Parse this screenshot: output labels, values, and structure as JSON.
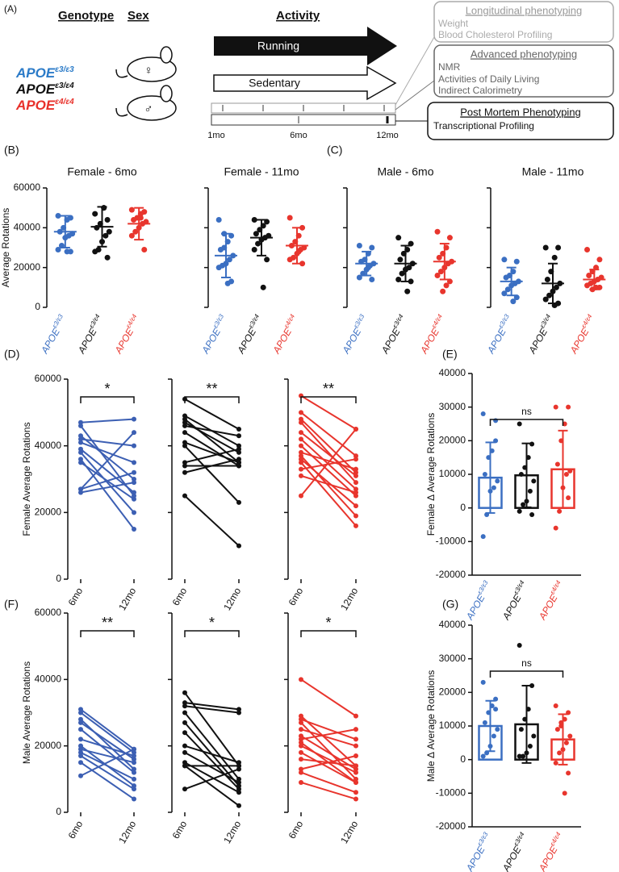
{
  "schematic": {
    "panel": "(A)",
    "headers": [
      "Genotype",
      "Sex",
      "Activity"
    ],
    "genotypes": [
      {
        "label": "APOE",
        "superscript": "ε3/ε3",
        "color": "#2b7bc8"
      },
      {
        "label": "APOE",
        "superscript": "ε3/ε4",
        "color": "#111111"
      },
      {
        "label": "APOE",
        "superscript": "ε4/ε4",
        "color": "#e8302a"
      }
    ],
    "sex_symbols": [
      "♀",
      "♂"
    ],
    "activities": [
      "Running",
      "Sedentary"
    ],
    "timeline": [
      "1mo",
      "6mo",
      "12mo"
    ],
    "phenotyping": [
      {
        "title": "Longitudinal phenotyping",
        "items": [
          "Weight",
          "Blood Cholesterol Profiling"
        ]
      },
      {
        "title": "Advanced phenotyping",
        "items": [
          "NMR",
          "Activities of Daily Living",
          "Indirect Calorimetry"
        ]
      },
      {
        "title": "Post Mortem Phenotyping",
        "items": [
          "Transcriptional Profiling"
        ]
      }
    ]
  },
  "chart_data": [
    {
      "type": "dot",
      "panel": "(B)",
      "title": "Female - 6mo",
      "ylabel": "Average Rotations",
      "categories": [
        {
          "label": "APOE",
          "superscript": "ε3/ε3"
        },
        {
          "label": "APOE",
          "superscript": "ε3/ε4"
        },
        {
          "label": "APOE",
          "superscript": "ε4/ε4"
        }
      ],
      "series": [
        {
          "color": "#3b6fc2",
          "points": [
            46000,
            45000,
            44000,
            40000,
            38000,
            37000,
            36000,
            35000,
            31000,
            29000,
            28000,
            28000
          ],
          "mean": 38000,
          "sd": 8000
        },
        {
          "color": "#111111",
          "points": [
            47000,
            44000,
            50000,
            42000,
            40000,
            38000,
            36000,
            33000,
            29000,
            28000,
            25000,
            50000
          ],
          "mean": 40500,
          "sd": 10000
        },
        {
          "color": "#e8352d",
          "points": [
            49000,
            48000,
            47000,
            45000,
            44000,
            43000,
            42000,
            40000,
            38000,
            36000,
            29000,
            45000
          ],
          "mean": 42000,
          "sd": 8000
        }
      ],
      "ylim": [
        0,
        60000
      ],
      "yticks": [
        0,
        20000,
        40000,
        60000
      ],
      "show_ytick_labels": true
    },
    {
      "type": "dot",
      "title": "Female - 11mo",
      "categories": [
        {
          "label": "APOE",
          "superscript": "ε3/ε3"
        },
        {
          "label": "APOE",
          "superscript": "ε3/ε4"
        },
        {
          "label": "APOE",
          "superscript": "ε4/ε4"
        }
      ],
      "series": [
        {
          "color": "#3b6fc2",
          "points": [
            44000,
            36000,
            33000,
            30000,
            29000,
            26000,
            24000,
            22000,
            21000,
            20000,
            13000,
            12000,
            37000
          ],
          "mean": 26000,
          "sd": 11000
        },
        {
          "color": "#111111",
          "points": [
            44000,
            43000,
            41000,
            39000,
            37000,
            36000,
            35000,
            34000,
            32000,
            29000,
            24000,
            10000
          ],
          "mean": 35000,
          "sd": 9000
        },
        {
          "color": "#e8352d",
          "points": [
            45000,
            40000,
            36000,
            33000,
            31000,
            30000,
            29000,
            27000,
            25000,
            24000,
            22000,
            28000
          ],
          "mean": 31000,
          "sd": 9000
        }
      ],
      "ylim": [
        0,
        60000
      ],
      "yticks": [
        0,
        20000,
        40000,
        60000
      ],
      "show_ytick_labels": false
    },
    {
      "type": "dot",
      "panel": "(C)",
      "title": "Male - 6mo",
      "categories": [
        {
          "label": "APOE",
          "superscript": "ε3/ε3"
        },
        {
          "label": "APOE",
          "superscript": "ε3/ε4"
        },
        {
          "label": "APOE",
          "superscript": "ε4/ε4"
        }
      ],
      "series": [
        {
          "color": "#3b6fc2",
          "points": [
            31000,
            30000,
            27000,
            24000,
            23000,
            22000,
            21000,
            19000,
            17000,
            15000,
            14000,
            20000
          ],
          "mean": 22000,
          "sd": 6000
        },
        {
          "color": "#111111",
          "points": [
            35000,
            32000,
            29000,
            27000,
            24000,
            22000,
            20000,
            19000,
            17000,
            14000,
            13000,
            8000
          ],
          "mean": 22000,
          "sd": 9000
        },
        {
          "color": "#e8352d",
          "points": [
            38000,
            35000,
            30000,
            27000,
            25000,
            23000,
            22000,
            20000,
            18000,
            16000,
            13000,
            11000,
            8000
          ],
          "mean": 23000,
          "sd": 9000
        }
      ],
      "ylim": [
        0,
        60000
      ],
      "yticks": [
        0,
        20000,
        40000,
        60000
      ],
      "show_ytick_labels": false
    },
    {
      "type": "dot",
      "title": "Male - 11mo",
      "categories": [
        {
          "label": "APOE",
          "superscript": "ε3/ε3"
        },
        {
          "label": "APOE",
          "superscript": "ε3/ε4"
        },
        {
          "label": "APOE",
          "superscript": "ε4/ε4"
        }
      ],
      "series": [
        {
          "color": "#3b6fc2",
          "points": [
            24000,
            23000,
            18000,
            16000,
            15000,
            13000,
            12000,
            11000,
            9000,
            7000,
            5000,
            3000
          ],
          "mean": 13000,
          "sd": 7000
        },
        {
          "color": "#111111",
          "points": [
            30000,
            30000,
            25000,
            18000,
            14000,
            12000,
            10000,
            8000,
            6000,
            4000,
            2000,
            1000
          ],
          "mean": 12000,
          "sd": 10000
        },
        {
          "color": "#e8352d",
          "points": [
            29000,
            24000,
            20000,
            18000,
            16000,
            15000,
            14000,
            13000,
            12000,
            11000,
            10000,
            10000,
            9000
          ],
          "mean": 14000,
          "sd": 5000
        }
      ],
      "ylim": [
        0,
        60000
      ],
      "yticks": [
        0,
        20000,
        40000,
        60000
      ],
      "show_ytick_labels": false
    },
    {
      "type": "paired",
      "panel": "(D)",
      "ylabel": "Female Average Rotations",
      "categories": [
        "6mo",
        "12mo"
      ],
      "color": "#3c5fb3",
      "significance": "*",
      "pairs": [
        [
          47000,
          48000
        ],
        [
          46000,
          25000
        ],
        [
          43000,
          30000
        ],
        [
          42000,
          40000
        ],
        [
          41000,
          35000
        ],
        [
          39000,
          26000
        ],
        [
          38000,
          20000
        ],
        [
          36000,
          15000
        ],
        [
          35000,
          24000
        ],
        [
          27000,
          44000
        ],
        [
          27000,
          32000
        ],
        [
          26000,
          29000
        ]
      ],
      "ylim": [
        0,
        60000
      ],
      "yticks": [
        0,
        20000,
        40000,
        60000
      ],
      "show_ytick_labels": true
    },
    {
      "type": "paired",
      "categories": [
        "6mo",
        "12mo"
      ],
      "color": "#111111",
      "significance": "**",
      "pairs": [
        [
          54000,
          45000
        ],
        [
          49000,
          40000
        ],
        [
          48000,
          35000
        ],
        [
          47000,
          38000
        ],
        [
          46000,
          43000
        ],
        [
          44000,
          34000
        ],
        [
          41000,
          35000
        ],
        [
          40000,
          23000
        ],
        [
          35000,
          39000
        ],
        [
          34000,
          34000
        ],
        [
          32000,
          36000
        ],
        [
          25000,
          10000
        ]
      ],
      "ylim": [
        0,
        60000
      ],
      "yticks": [
        0,
        20000,
        40000,
        60000
      ],
      "show_ytick_labels": false
    },
    {
      "type": "paired",
      "categories": [
        "6mo",
        "12mo"
      ],
      "color": "#e8352d",
      "significance": "**",
      "pairs": [
        [
          55000,
          45000
        ],
        [
          50000,
          37000
        ],
        [
          48000,
          32000
        ],
        [
          47000,
          29000
        ],
        [
          44000,
          31000
        ],
        [
          42000,
          27000
        ],
        [
          40000,
          25000
        ],
        [
          38000,
          33000
        ],
        [
          37000,
          19000
        ],
        [
          36000,
          22000
        ],
        [
          35000,
          16000
        ],
        [
          33000,
          36000
        ],
        [
          31000,
          26000
        ],
        [
          25000,
          45000
        ]
      ],
      "ylim": [
        0,
        60000
      ],
      "yticks": [
        0,
        20000,
        40000,
        60000
      ],
      "show_ytick_labels": false
    },
    {
      "type": "bar_dot",
      "panel": "(E)",
      "ylabel": "Female Δ Average Rotations",
      "significance": "ns",
      "categories": [
        {
          "label": "APOE",
          "superscript": "ε3/ε3"
        },
        {
          "label": "APOE",
          "superscript": "ε3/ε4"
        },
        {
          "label": "APOE",
          "superscript": "ε4/ε4"
        }
      ],
      "series": [
        {
          "color": "#3b6fc2",
          "points": [
            28000,
            26000,
            17000,
            15000,
            10000,
            8000,
            6000,
            5000,
            -2000,
            -8500,
            20000
          ],
          "mean": 9000,
          "sd": 10500
        },
        {
          "color": "#111111",
          "points": [
            25000,
            19000,
            15000,
            12000,
            10000,
            8000,
            5000,
            2000,
            1000,
            -1000,
            -2000
          ],
          "mean": 9700,
          "sd": 9500
        },
        {
          "color": "#e8352d",
          "points": [
            30000,
            30000,
            25000,
            20000,
            13000,
            11000,
            10000,
            6000,
            -1000,
            -6000,
            3000
          ],
          "mean": 11500,
          "sd": 11500
        }
      ],
      "ylim": [
        -20000,
        40000
      ],
      "yticks": [
        -20000,
        -10000,
        0,
        10000,
        20000,
        30000,
        40000
      ],
      "show_ytick_labels": true
    },
    {
      "type": "paired",
      "panel": "(F)",
      "ylabel": "Male Average Rotations",
      "categories": [
        "6mo",
        "12mo"
      ],
      "color": "#3c5fb3",
      "significance": "**",
      "pairs": [
        [
          31000,
          19000
        ],
        [
          30000,
          18000
        ],
        [
          28000,
          13000
        ],
        [
          27000,
          16000
        ],
        [
          25000,
          12000
        ],
        [
          22000,
          17000
        ],
        [
          20000,
          8000
        ],
        [
          19000,
          15000
        ],
        [
          18000,
          10000
        ],
        [
          17000,
          7000
        ],
        [
          15000,
          4000
        ],
        [
          11000,
          19000
        ]
      ],
      "ylim": [
        0,
        60000
      ],
      "yticks": [
        0,
        20000,
        40000,
        60000
      ],
      "show_ytick_labels": true
    },
    {
      "type": "paired",
      "categories": [
        "6mo",
        "12mo"
      ],
      "color": "#111111",
      "significance": "*",
      "pairs": [
        [
          36000,
          14000
        ],
        [
          33000,
          31000
        ],
        [
          32000,
          30000
        ],
        [
          30000,
          10000
        ],
        [
          27000,
          8000
        ],
        [
          24000,
          7000
        ],
        [
          20000,
          15000
        ],
        [
          18000,
          9000
        ],
        [
          15000,
          6000
        ],
        [
          14000,
          2000
        ],
        [
          14000,
          14000
        ],
        [
          7000,
          13000
        ]
      ],
      "ylim": [
        0,
        60000
      ],
      "yticks": [
        0,
        20000,
        40000,
        60000
      ],
      "show_ytick_labels": false
    },
    {
      "type": "paired",
      "categories": [
        "6mo",
        "12mo"
      ],
      "color": "#e8352d",
      "significance": "*",
      "pairs": [
        [
          40000,
          29000
        ],
        [
          29000,
          14000
        ],
        [
          28000,
          22000
        ],
        [
          27000,
          10000
        ],
        [
          25000,
          20000
        ],
        [
          23000,
          13000
        ],
        [
          22000,
          25000
        ],
        [
          21000,
          9000
        ],
        [
          20000,
          12000
        ],
        [
          18000,
          9000
        ],
        [
          16000,
          14000
        ],
        [
          13000,
          17000
        ],
        [
          12000,
          6000
        ],
        [
          9000,
          4000
        ]
      ],
      "ylim": [
        0,
        60000
      ],
      "yticks": [
        0,
        20000,
        40000,
        60000
      ],
      "show_ytick_labels": false
    },
    {
      "type": "bar_dot",
      "panel": "(G)",
      "ylabel": "Male Δ Average Rotations",
      "significance": "ns",
      "categories": [
        {
          "label": "APOE",
          "superscript": "ε3/ε3"
        },
        {
          "label": "APOE",
          "superscript": "ε3/ε4"
        },
        {
          "label": "APOE",
          "superscript": "ε4/ε4"
        }
      ],
      "series": [
        {
          "color": "#3b6fc2",
          "points": [
            23000,
            18000,
            16000,
            14000,
            11000,
            9000,
            7000,
            4000,
            2000,
            1000,
            15000
          ],
          "mean": 10000,
          "sd": 7500
        },
        {
          "color": "#111111",
          "points": [
            34000,
            22000,
            15000,
            12000,
            9000,
            7000,
            4000,
            2000,
            1000,
            1000
          ],
          "mean": 10500,
          "sd": 11500
        },
        {
          "color": "#e8352d",
          "points": [
            16000,
            14000,
            12000,
            10000,
            9000,
            7000,
            5000,
            3000,
            2000,
            -1000,
            -4000,
            -10000,
            11000
          ],
          "mean": 6000,
          "sd": 7500
        }
      ],
      "ylim": [
        -20000,
        40000
      ],
      "yticks": [
        -20000,
        -10000,
        0,
        10000,
        20000,
        30000,
        40000
      ],
      "show_ytick_labels": true
    }
  ]
}
